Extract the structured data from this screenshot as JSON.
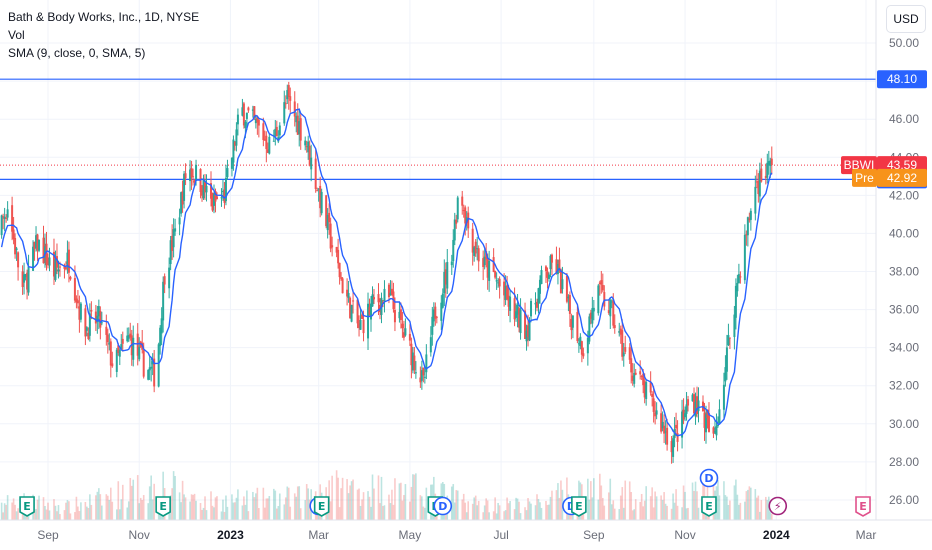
{
  "header": {
    "title": "Bath & Body Works, Inc., 1D, NYSE",
    "volume_label": "Vol",
    "sma_label": "SMA (9, close, 0, SMA, 5)",
    "currency": "USD"
  },
  "colors": {
    "up": "#26a69a",
    "down": "#ef5350",
    "sma": "#2962ff",
    "hline": "#2962ff",
    "current": "#f23645",
    "pre": "#f7931a"
  },
  "chart_data": {
    "type": "candlestick",
    "symbol": "BBWI",
    "ylim": [
      25,
      51
    ],
    "y_ticks": [
      26,
      28,
      30,
      32,
      34,
      36,
      38,
      40,
      42,
      44,
      46,
      48,
      50
    ],
    "y_tick_labels": [
      "26.00",
      "28.00",
      "30.00",
      "32.00",
      "34.00",
      "36.00",
      "38.00",
      "40.00",
      "42.00",
      "44.00",
      "46.00",
      "48.00",
      "50.00"
    ],
    "x_labels": [
      "Sep",
      "Nov",
      "2023",
      "Mar",
      "May",
      "Jul",
      "Sep",
      "Nov",
      "2024",
      "Mar"
    ],
    "x_label_months": [
      "2022-09",
      "2022-11",
      "2023-01",
      "2023-03",
      "2023-05",
      "2023-07",
      "2023-09",
      "2023-11",
      "2024-01",
      "2024-03"
    ],
    "horizontal_lines": [
      {
        "value": 48.1,
        "label": "48.10"
      },
      {
        "value": 42.84,
        "label": "42.84"
      }
    ],
    "last_price": {
      "symbol": "BBWI",
      "value": 43.59,
      "label": "43.59"
    },
    "premarket": {
      "label": "Pre",
      "value": 42.92,
      "text": "42.92"
    },
    "close_anchors": [
      [
        "2022-07-20",
        38.0
      ],
      [
        "2022-08-05",
        41.5
      ],
      [
        "2022-08-15",
        37.0
      ],
      [
        "2022-08-25",
        39.5
      ],
      [
        "2022-09-05",
        38.0
      ],
      [
        "2022-09-15",
        38.6
      ],
      [
        "2022-09-25",
        35.0
      ],
      [
        "2022-10-05",
        35.5
      ],
      [
        "2022-10-15",
        33.0
      ],
      [
        "2022-10-25",
        34.5
      ],
      [
        "2022-11-05",
        33.0
      ],
      [
        "2022-11-12",
        32.5
      ],
      [
        "2022-11-18",
        38.0
      ],
      [
        "2022-11-25",
        40.0
      ],
      [
        "2022-12-03",
        43.5
      ],
      [
        "2022-12-10",
        43.0
      ],
      [
        "2022-12-20",
        41.5
      ],
      [
        "2022-12-28",
        42.0
      ],
      [
        "2023-01-08",
        46.5
      ],
      [
        "2023-01-20",
        45.5
      ],
      [
        "2023-01-28",
        44.5
      ],
      [
        "2023-02-08",
        47.0
      ],
      [
        "2023-02-20",
        45.0
      ],
      [
        "2023-02-28",
        42.5
      ],
      [
        "2023-03-08",
        40.0
      ],
      [
        "2023-03-18",
        37.0
      ],
      [
        "2023-03-28",
        35.0
      ],
      [
        "2023-04-08",
        36.5
      ],
      [
        "2023-04-18",
        36.5
      ],
      [
        "2023-04-28",
        34.5
      ],
      [
        "2023-05-06",
        33.0
      ],
      [
        "2023-05-10",
        32.0
      ],
      [
        "2023-05-18",
        36.0
      ],
      [
        "2023-05-28",
        38.5
      ],
      [
        "2023-06-03",
        42.5
      ],
      [
        "2023-06-10",
        40.0
      ],
      [
        "2023-06-18",
        38.5
      ],
      [
        "2023-06-28",
        37.5
      ],
      [
        "2023-07-08",
        36.0
      ],
      [
        "2023-07-18",
        35.0
      ],
      [
        "2023-07-28",
        37.5
      ],
      [
        "2023-08-06",
        38.5
      ],
      [
        "2023-08-15",
        36.0
      ],
      [
        "2023-08-25",
        34.0
      ],
      [
        "2023-09-03",
        37.0
      ],
      [
        "2023-09-12",
        36.0
      ],
      [
        "2023-09-22",
        33.5
      ],
      [
        "2023-10-03",
        32.0
      ],
      [
        "2023-10-13",
        30.5
      ],
      [
        "2023-10-23",
        29.0
      ],
      [
        "2023-10-30",
        30.0
      ],
      [
        "2023-11-05",
        31.5
      ],
      [
        "2023-11-13",
        30.5
      ],
      [
        "2023-11-20",
        29.0
      ],
      [
        "2023-11-27",
        32.5
      ],
      [
        "2023-12-05",
        37.0
      ],
      [
        "2023-12-12",
        40.0
      ],
      [
        "2023-12-18",
        42.5
      ],
      [
        "2023-12-22",
        43.0
      ],
      [
        "2023-12-29",
        43.6
      ]
    ],
    "volume_levels": [
      [
        "2022-07-20",
        0.4
      ],
      [
        "2022-08-15",
        0.5
      ],
      [
        "2022-09-15",
        0.35
      ],
      [
        "2022-11-16",
        1.0
      ],
      [
        "2022-12-15",
        0.5
      ],
      [
        "2023-02-15",
        0.6
      ],
      [
        "2023-03-01",
        0.9
      ],
      [
        "2023-05-15",
        0.8
      ],
      [
        "2023-06-15",
        0.45
      ],
      [
        "2023-07-20",
        0.4
      ],
      [
        "2023-08-25",
        0.9
      ],
      [
        "2023-10-20",
        0.5
      ],
      [
        "2023-11-20",
        0.9
      ],
      [
        "2023-12-15",
        0.6
      ],
      [
        "2023-12-29",
        0.4
      ]
    ],
    "event_markers": [
      {
        "date": "2022-08-18",
        "type": "earnings",
        "label": "E"
      },
      {
        "date": "2022-11-17",
        "type": "earnings",
        "label": "E"
      },
      {
        "date": "2023-03-01",
        "type": "dividend",
        "label": "D"
      },
      {
        "date": "2023-03-03",
        "type": "earnings",
        "label": "E"
      },
      {
        "date": "2023-05-18",
        "type": "earnings",
        "label": "E"
      },
      {
        "date": "2023-05-23",
        "type": "dividend",
        "label": "D"
      },
      {
        "date": "2023-08-17",
        "type": "dividend",
        "label": "D"
      },
      {
        "date": "2023-08-22",
        "type": "earnings",
        "label": "E"
      },
      {
        "date": "2023-11-17",
        "type": "earnings",
        "label": "E"
      },
      {
        "date": "2023-11-17",
        "type": "dividend",
        "label": "D",
        "row": "above"
      },
      {
        "date": "2024-01-02",
        "type": "split",
        "label": "⚡"
      },
      {
        "date": "2024-02-28",
        "type": "earnings-future",
        "label": "E"
      }
    ]
  }
}
